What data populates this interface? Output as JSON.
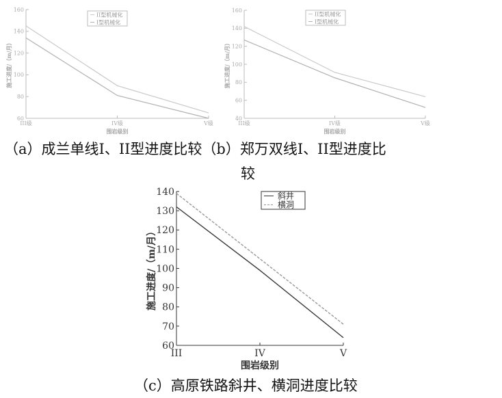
{
  "captions": {
    "ab_line1": "（a）成兰单线I、II型进度比较（b）郑万双线I、II型进度比",
    "ab_line2": "较",
    "c": "（c）高原铁路斜井、横洞进度比较"
  },
  "chart_data": [
    {
      "type": "line",
      "xlabel": "围岩级别",
      "ylabel": "施工进度/（m/月）",
      "categories": [
        "III级",
        "IV级",
        "V级"
      ],
      "ylim": [
        60,
        160
      ],
      "yticks": [
        60,
        80,
        100,
        120,
        140,
        160
      ],
      "legend": "top-center",
      "grid": false,
      "series": [
        {
          "name": "II型机械化",
          "values": [
            145,
            90,
            65
          ],
          "color": "#c8c8c8",
          "dash": false
        },
        {
          "name": "I型机械化",
          "values": [
            134,
            81,
            60
          ],
          "color": "#b0b0b0",
          "dash": false
        }
      ]
    },
    {
      "type": "line",
      "xlabel": "围岩级别",
      "ylabel": "施工进度/（m/月）",
      "categories": [
        "III级",
        "IV级",
        "V级"
      ],
      "ylim": [
        40,
        160
      ],
      "yticks": [
        40,
        60,
        80,
        100,
        120,
        140,
        160
      ],
      "legend": "top-center",
      "grid": false,
      "series": [
        {
          "name": "II型机械化",
          "values": [
            142,
            91,
            64
          ],
          "color": "#c8c8c8",
          "dash": false
        },
        {
          "name": "I型机械化",
          "values": [
            127,
            85,
            52
          ],
          "color": "#b0b0b0",
          "dash": false
        }
      ]
    },
    {
      "type": "line",
      "xlabel": "围岩级别",
      "ylabel": "施工进度/（m/月）",
      "categories": [
        "III",
        "IV",
        "V"
      ],
      "ylim": [
        60,
        140
      ],
      "yticks": [
        60,
        70,
        80,
        90,
        100,
        110,
        120,
        130,
        140
      ],
      "legend": "top-right",
      "grid": false,
      "series": [
        {
          "name": "斜井",
          "values": [
            132,
            99,
            64
          ],
          "color": "#333333",
          "dash": false
        },
        {
          "name": "横洞",
          "values": [
            139,
            105,
            71
          ],
          "color": "#999999",
          "dash": true
        }
      ]
    }
  ]
}
